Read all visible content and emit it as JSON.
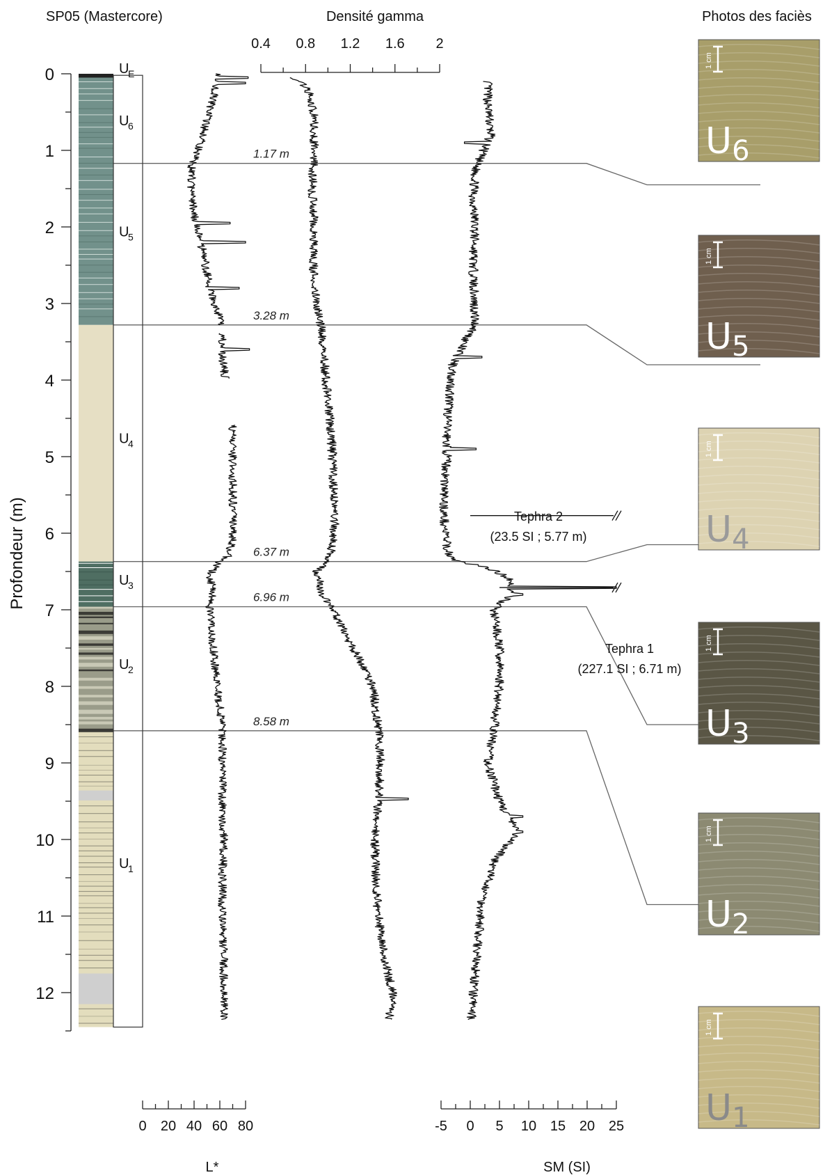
{
  "core_title": "SP05 (Mastercore)",
  "photos_title": "Photos des faciès",
  "scale_bar_label": "1 cm",
  "colors": {
    "curve": "#111111",
    "line": "#666666"
  },
  "chart_data": {
    "type": "line",
    "y_axis": {
      "label": "Profondeur (m)",
      "range": [
        0,
        12.5
      ],
      "ticks": [
        "0",
        "1",
        "2",
        "3",
        "4",
        "5",
        "6",
        "7",
        "8",
        "9",
        "10",
        "11",
        "12"
      ],
      "minor_step": 0.5,
      "inverted": true
    },
    "x_axes": [
      {
        "id": "L",
        "label": "L*",
        "range": [
          0,
          80
        ],
        "ticks": [
          "0",
          "20",
          "40",
          "60",
          "80"
        ],
        "position": "bottom"
      },
      {
        "id": "gamma",
        "label": "Densité gamma",
        "range": [
          0.4,
          2
        ],
        "ticks": [
          "0.4",
          "0.8",
          "1.2",
          "1.6",
          "2"
        ],
        "position": "top"
      },
      {
        "id": "SM",
        "label": "SM (SI)",
        "range": [
          -5,
          25
        ],
        "ticks": [
          "-5",
          "0",
          "5",
          "10",
          "15",
          "20",
          "25"
        ],
        "position": "bottom"
      }
    ],
    "series": [
      {
        "axis": "L",
        "points": [
          [
            0,
            60
          ],
          [
            0.3,
            55
          ],
          [
            0.6,
            50
          ],
          [
            0.9,
            45
          ],
          [
            1.2,
            38
          ],
          [
            1.6,
            38
          ],
          [
            2.0,
            42
          ],
          [
            2.4,
            48
          ],
          [
            2.8,
            52
          ],
          [
            3.1,
            58
          ],
          [
            3.28,
            62
          ],
          [
            3.45,
            62
          ],
          [
            3.7,
            62
          ],
          [
            3.95,
            64
          ],
          [
            4.62,
            70
          ],
          [
            5.0,
            70
          ],
          [
            5.4,
            70
          ],
          [
            5.8,
            70
          ],
          [
            6.1,
            70
          ],
          [
            6.3,
            66
          ],
          [
            6.4,
            58
          ],
          [
            6.55,
            52
          ],
          [
            6.75,
            55
          ],
          [
            6.96,
            52
          ],
          [
            7.5,
            55
          ],
          [
            8.0,
            58
          ],
          [
            8.58,
            62
          ],
          [
            9.0,
            62
          ],
          [
            9.5,
            62
          ],
          [
            10.0,
            63
          ],
          [
            10.5,
            62
          ],
          [
            11.0,
            62
          ],
          [
            11.5,
            63
          ],
          [
            12.0,
            63
          ],
          [
            12.35,
            63
          ]
        ],
        "gaps": [
          [
            3.28,
            3.38
          ],
          [
            3.98,
            4.58
          ]
        ],
        "spikes": [
          [
            0.05,
            82
          ],
          [
            0.12,
            80
          ],
          [
            1.95,
            68
          ],
          [
            2.2,
            80
          ],
          [
            2.8,
            75
          ],
          [
            3.6,
            83
          ]
        ]
      },
      {
        "axis": "gamma",
        "points": [
          [
            0.05,
            0.7
          ],
          [
            0.2,
            0.82
          ],
          [
            0.5,
            0.87
          ],
          [
            0.8,
            0.88
          ],
          [
            1.1,
            0.87
          ],
          [
            1.5,
            0.86
          ],
          [
            2.0,
            0.88
          ],
          [
            2.5,
            0.87
          ],
          [
            3.0,
            0.9
          ],
          [
            3.3,
            0.94
          ],
          [
            3.6,
            0.96
          ],
          [
            4.0,
            0.98
          ],
          [
            4.5,
            1.02
          ],
          [
            5.0,
            1.04
          ],
          [
            5.5,
            1.05
          ],
          [
            5.9,
            1.06
          ],
          [
            6.3,
            1.02
          ],
          [
            6.5,
            0.9
          ],
          [
            6.8,
            0.95
          ],
          [
            7.0,
            1.05
          ],
          [
            7.3,
            1.15
          ],
          [
            7.7,
            1.3
          ],
          [
            8.0,
            1.4
          ],
          [
            8.5,
            1.45
          ],
          [
            9.0,
            1.47
          ],
          [
            9.5,
            1.45
          ],
          [
            10.0,
            1.42
          ],
          [
            10.5,
            1.43
          ],
          [
            11.0,
            1.45
          ],
          [
            11.5,
            1.5
          ],
          [
            12.0,
            1.58
          ],
          [
            12.35,
            1.55
          ]
        ],
        "gaps": [],
        "spikes": [
          [
            9.47,
            1.72
          ]
        ]
      },
      {
        "axis": "SM",
        "points": [
          [
            0.1,
            3
          ],
          [
            0.4,
            3
          ],
          [
            0.8,
            3.5
          ],
          [
            1.2,
            1
          ],
          [
            1.6,
            0.5
          ],
          [
            2.0,
            0.8
          ],
          [
            2.5,
            0.5
          ],
          [
            3.0,
            0.7
          ],
          [
            3.3,
            0.8
          ],
          [
            3.5,
            -1
          ],
          [
            3.8,
            -3
          ],
          [
            4.2,
            -3.5
          ],
          [
            4.6,
            -4
          ],
          [
            5.0,
            -4
          ],
          [
            5.5,
            -4.5
          ],
          [
            5.8,
            -4.5
          ],
          [
            6.2,
            -4
          ],
          [
            6.35,
            -3
          ],
          [
            6.45,
            3
          ],
          [
            6.6,
            7
          ],
          [
            6.8,
            7
          ],
          [
            7.0,
            4
          ],
          [
            7.5,
            5
          ],
          [
            8.0,
            5
          ],
          [
            8.58,
            4
          ],
          [
            9.0,
            3
          ],
          [
            9.5,
            5
          ],
          [
            9.9,
            8
          ],
          [
            10.3,
            4
          ],
          [
            10.8,
            2
          ],
          [
            11.2,
            1.5
          ],
          [
            11.6,
            1
          ],
          [
            12.0,
            0.5
          ],
          [
            12.35,
            0.2
          ]
        ],
        "gaps": [],
        "spikes": [
          [
            0.9,
            -1
          ],
          [
            3.7,
            2
          ],
          [
            4.9,
            1
          ],
          [
            6.71,
            25
          ],
          [
            6.8,
            9
          ],
          [
            9.7,
            9
          ],
          [
            9.9,
            9
          ]
        ]
      }
    ],
    "core_log": [
      {
        "top": 0,
        "bottom": 0.05,
        "color": "#222222"
      },
      {
        "top": 0.05,
        "bottom": 3.28,
        "color": "#72918b"
      },
      {
        "top": 3.28,
        "bottom": 6.37,
        "color": "#e6dfc4"
      },
      {
        "top": 6.37,
        "bottom": 6.96,
        "color": "#4f6e62"
      },
      {
        "top": 6.96,
        "bottom": 8.58,
        "color": "#9a9c8a"
      },
      {
        "top": 8.58,
        "bottom": 12.45,
        "color": "#e3ddbd"
      }
    ],
    "unit_labels": [
      {
        "main": "U",
        "sub": "E",
        "depth": -0.08
      },
      {
        "main": "U",
        "sub": "6",
        "depth": 0.6
      },
      {
        "main": "U",
        "sub": "5",
        "depth": 2.05
      },
      {
        "main": "U",
        "sub": "4",
        "depth": 4.75
      },
      {
        "main": "U",
        "sub": "3",
        "depth": 6.6
      },
      {
        "main": "U",
        "sub": "2",
        "depth": 7.7
      },
      {
        "main": "U",
        "sub": "1",
        "depth": 10.3
      }
    ],
    "boundaries": [
      {
        "depth": 1.17,
        "label": "1.17 m",
        "photo_edge": 1.45
      },
      {
        "depth": 3.28,
        "label": "3.28 m",
        "photo_edge": 3.8
      },
      {
        "depth": 6.37,
        "label": "6.37 m",
        "photo_edge": 6.15
      },
      {
        "depth": 6.96,
        "label": "6.96 m",
        "photo_edge": 8.5
      },
      {
        "depth": 8.58,
        "label": "8.58 m",
        "photo_edge": 10.85
      }
    ],
    "annotations": [
      {
        "name": "Tephra 2",
        "detail": "(23.5 SI ; 5.77 m)",
        "depth": 5.77,
        "sm": 23.5
      },
      {
        "name": "Tephra 1",
        "detail": "(227.1 SI ; 6.71 m)",
        "depth": 6.71,
        "sm": 227.1
      }
    ],
    "photos": [
      {
        "unit": "U",
        "sub": "6",
        "color": "#a89e6a",
        "label_color": "#ffffff"
      },
      {
        "unit": "U",
        "sub": "5",
        "color": "#6f5f4e",
        "label_color": "#ffffff"
      },
      {
        "unit": "U",
        "sub": "4",
        "color": "#ddd3b2",
        "label_color": "#9a9a9a"
      },
      {
        "unit": "U",
        "sub": "3",
        "color": "#5a5645",
        "label_color": "#ffffff"
      },
      {
        "unit": "U",
        "sub": "2",
        "color": "#8c8a72",
        "label_color": "#ffffff"
      },
      {
        "unit": "U",
        "sub": "1",
        "color": "#c7b988",
        "label_color": "#8a8a8a"
      }
    ]
  }
}
